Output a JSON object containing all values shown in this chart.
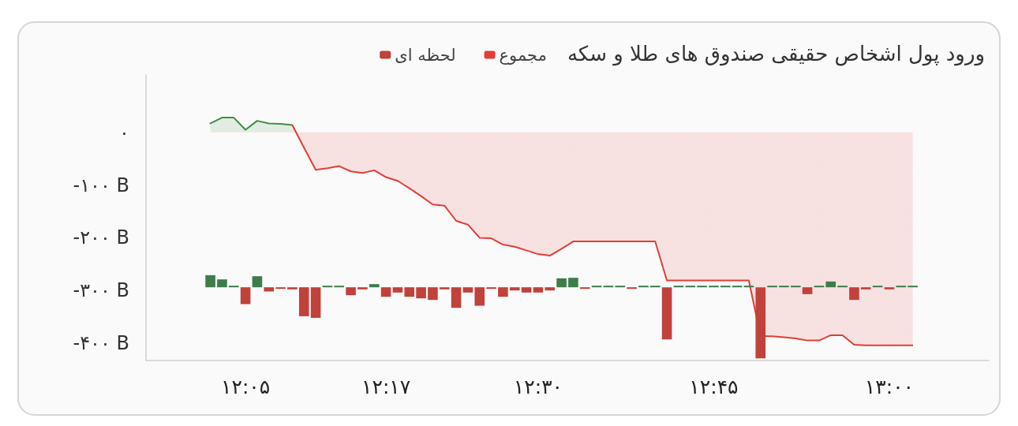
{
  "chart_data": {
    "type": "area",
    "title": "ورود پول اشخاص حقیقی صندوق های طلا و سکه",
    "categories": [
      null,
      null,
      null,
      null,
      null,
      null,
      null,
      null,
      "۱۲:۰۵",
      null,
      null,
      null,
      null,
      null,
      null,
      null,
      null,
      null,
      null,
      null,
      "۱۲:۱۷",
      null,
      null,
      null,
      null,
      null,
      null,
      null,
      null,
      null,
      null,
      null,
      null,
      "۱۲:۳۰",
      null,
      null,
      null,
      null,
      null,
      null,
      null,
      null,
      null,
      null,
      null,
      null,
      null,
      null,
      "۱۲:۴۵",
      null,
      null,
      null,
      null,
      null,
      null,
      null,
      null,
      null,
      null,
      null,
      null,
      null,
      null,
      "۱۳:۰۰",
      null,
      null,
      null,
      null,
      null,
      null,
      null,
      null
    ],
    "series": [
      {
        "name": "مجموع",
        "values": [
          null,
          null,
          null,
          null,
          null,
          17,
          28,
          28,
          5,
          22,
          17,
          16,
          14,
          -29,
          -71,
          -68,
          -64,
          -74,
          -77,
          -72,
          -85,
          -92,
          -106,
          -121,
          -137,
          -139,
          -168,
          -175,
          -200,
          -201,
          -213,
          -217,
          -224,
          -231,
          -234,
          -221,
          -207,
          -207,
          -207,
          -207,
          -207,
          -207,
          -207,
          -207,
          -281,
          -281,
          -281,
          -281,
          -281,
          -281,
          -281,
          -281,
          -387,
          -387,
          -389,
          -391,
          -395,
          -395,
          -385,
          -385,
          -403,
          -404,
          -404,
          -404,
          -404,
          -404,
          null,
          null,
          null,
          null,
          null,
          null
        ],
        "colors": [
          null,
          null,
          null,
          null,
          null,
          "#3f8f42",
          "#3f8f42",
          "#3f8f42",
          "#3f8f42",
          "#3f8f42",
          "#3f8f42",
          "#3f8f42",
          "#3f8f42",
          "#e33d35",
          "#e33d35",
          "#e33d35",
          "#e33d35",
          "#e33d35",
          "#e33d35",
          "#e33d35",
          "#e33d35",
          "#e33d35",
          "#e33d35",
          "#e33d35",
          "#e33d35",
          "#e33d35",
          "#e33d35",
          "#e33d35",
          "#e33d35",
          "#e33d35",
          "#e33d35",
          "#e33d35",
          "#e33d35",
          "#e33d35",
          "#e33d35",
          "#e33d35",
          "#e33d35",
          "#e33d35",
          "#e33d35",
          "#e33d35",
          "#e33d35",
          "#e33d35",
          "#e33d35",
          "#e33d35",
          "#e33d35",
          "#e33d35",
          "#e33d35",
          "#e33d35",
          "#e33d35",
          "#e33d35",
          "#e33d35",
          "#e33d35",
          "#e33d35",
          "#e33d35",
          "#e33d35",
          "#e33d35",
          "#e33d35",
          "#e33d35",
          "#e33d35",
          "#e33d35",
          "#e33d35",
          "#e33d35",
          "#e33d35",
          "#e33d35",
          "#e33d35",
          "#e33d35",
          null,
          null,
          null,
          null,
          null,
          null
        ]
      },
      {
        "name": "لحظه ای",
        "type": "bar",
        "values": [
          null,
          null,
          null,
          null,
          null,
          23,
          15,
          3,
          -32,
          21,
          -8,
          -3,
          -4,
          -55,
          -58,
          3,
          3,
          -15,
          -4,
          6,
          -18,
          -10,
          -18,
          -21,
          -24,
          -4,
          -39,
          -10,
          -35,
          -3,
          -18,
          -6,
          -10,
          -10,
          -6,
          17,
          18,
          -3,
          3,
          3,
          3,
          -3,
          3,
          3,
          -99,
          3,
          3,
          3,
          3,
          3,
          3,
          3,
          -135,
          3,
          3,
          3,
          -13,
          3,
          11,
          3,
          -24,
          -4,
          3,
          -4,
          3,
          3,
          null,
          null,
          null,
          null,
          null,
          null
        ],
        "base": [
          null,
          null,
          null,
          null,
          null,
          -294,
          -294,
          -294,
          -294,
          -294,
          -294,
          -294,
          -294,
          -294,
          -294,
          -294,
          -294,
          -294,
          -294,
          -294,
          -294,
          -294,
          -294,
          -294,
          -294,
          -294,
          -294,
          -294,
          -294,
          -294,
          -294,
          -294,
          -294,
          -294,
          -294,
          -294,
          -294,
          -294,
          -294,
          -294,
          -294,
          -294,
          -294,
          -294,
          -294,
          -294,
          -294,
          -294,
          -294,
          -294,
          -294,
          -294,
          -294,
          -294,
          -294,
          -294,
          -294,
          -294,
          -294,
          -294,
          -294,
          -294,
          -294,
          -294,
          -294,
          -294,
          null,
          null,
          null,
          null,
          null,
          null
        ],
        "colors": [
          null,
          null,
          null,
          null,
          null,
          "#3e7c4c",
          "#3e7c4c",
          "#3e7c4c",
          "#c1413b",
          "#3e7c4c",
          "#c1413b",
          "#c1413b",
          "#c1413b",
          "#c1413b",
          "#c1413b",
          "#3e7c4c",
          "#3e7c4c",
          "#c1413b",
          "#c1413b",
          "#3e7c4c",
          "#c1413b",
          "#c1413b",
          "#c1413b",
          "#c1413b",
          "#c1413b",
          "#c1413b",
          "#c1413b",
          "#c1413b",
          "#c1413b",
          "#c1413b",
          "#c1413b",
          "#c1413b",
          "#c1413b",
          "#c1413b",
          "#c1413b",
          "#3e7c4c",
          "#3e7c4c",
          "#c1413b",
          "#3e7c4c",
          "#3e7c4c",
          "#3e7c4c",
          "#c1413b",
          "#3e7c4c",
          "#3e7c4c",
          "#c1413b",
          "#3e7c4c",
          "#3e7c4c",
          "#3e7c4c",
          "#3e7c4c",
          "#3e7c4c",
          "#3e7c4c",
          "#3e7c4c",
          "#c1413b",
          "#3e7c4c",
          "#3e7c4c",
          "#3e7c4c",
          "#c1413b",
          "#3e7c4c",
          "#3e7c4c",
          "#3e7c4c",
          "#c1413b",
          "#c1413b",
          "#3e7c4c",
          "#c1413b",
          "#3e7c4c",
          "#3e7c4c",
          null,
          null,
          null,
          null,
          null,
          null
        ]
      }
    ],
    "ylim": [
      -433,
      109
    ],
    "yticks": [
      {
        "value": 0,
        "label": "۰"
      },
      {
        "value": -100,
        "label": "-۱۰۰ B"
      },
      {
        "value": -200,
        "label": "-۲۰۰ B"
      },
      {
        "value": -300,
        "label": "-۳۰۰ B"
      },
      {
        "value": -400,
        "label": "-۴۰۰ B"
      }
    ],
    "grid": false,
    "legend": "top"
  }
}
